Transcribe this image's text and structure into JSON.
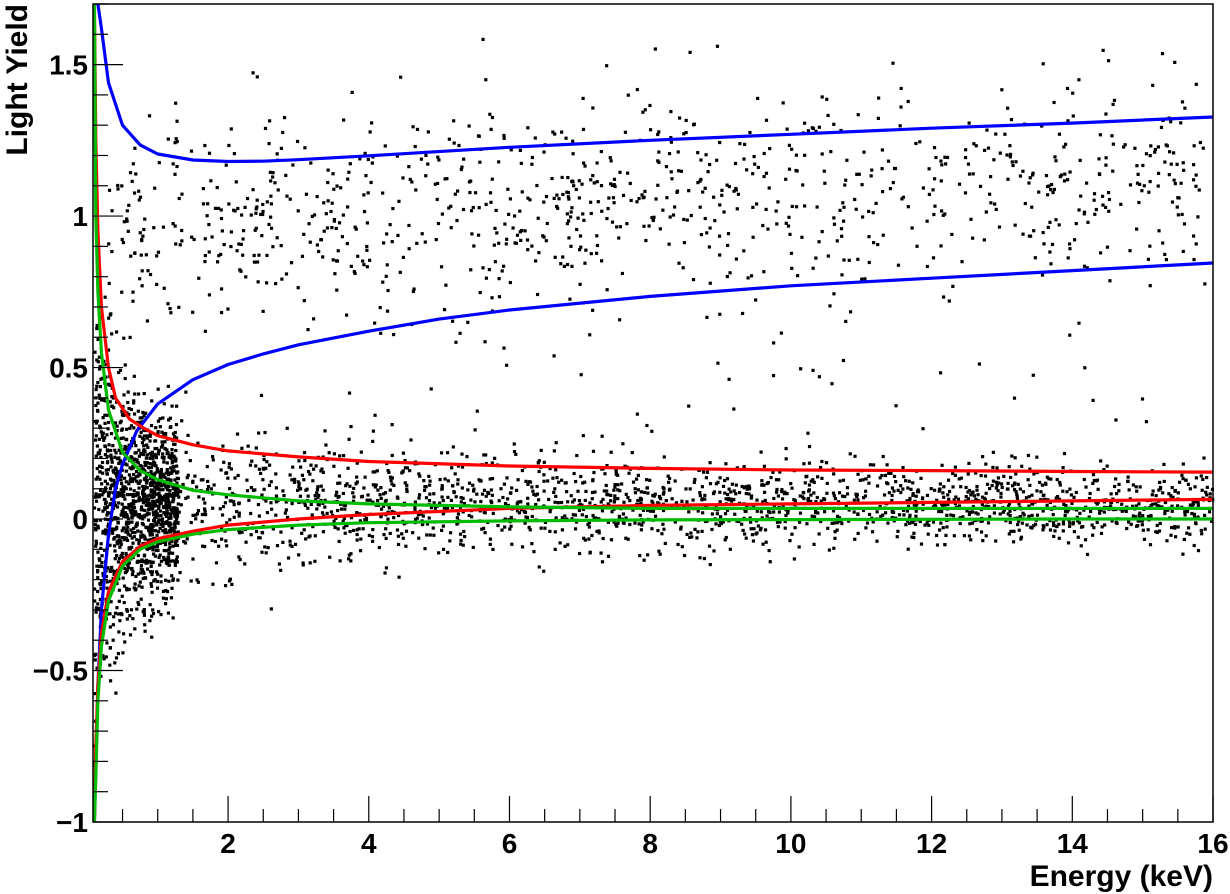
{
  "chart_data": {
    "type": "scatter",
    "title": "",
    "xlabel": "Energy (keV)",
    "ylabel": "Light Yield",
    "xlim": [
      0.08,
      16
    ],
    "ylim": [
      -1,
      1.7
    ],
    "x_ticks": [
      2,
      4,
      6,
      8,
      10,
      12,
      14,
      16
    ],
    "x_tick_labels": [
      "2",
      "4",
      "6",
      "8",
      "10",
      "12",
      "14",
      "16"
    ],
    "y_ticks": [
      -1,
      -0.5,
      0,
      0.5,
      1,
      1.5
    ],
    "y_tick_labels": [
      "−1",
      "−0.5",
      "0",
      "0.5",
      "1",
      "1.5"
    ],
    "grid": false,
    "legend": "none",
    "marker_color": "#000000",
    "curves": [
      {
        "color": "#0000ff",
        "role": "upper band",
        "x": [
          0.15,
          0.2,
          0.3,
          0.5,
          0.75,
          1.0,
          1.5,
          2.0,
          2.5,
          3,
          4,
          6,
          8,
          10,
          12,
          14,
          16
        ],
        "y": [
          1.8,
          1.62,
          1.44,
          1.3,
          1.235,
          1.205,
          1.185,
          1.18,
          1.181,
          1.186,
          1.199,
          1.227,
          1.25,
          1.27,
          1.29,
          1.307,
          1.327
        ]
      },
      {
        "color": "#0000ff",
        "role": "lower band",
        "x": [
          0.1,
          0.15,
          0.2,
          0.3,
          0.4,
          0.5,
          0.7,
          1.0,
          1.5,
          2.0,
          2.5,
          3,
          4,
          5,
          6,
          8,
          10,
          12,
          14,
          16
        ],
        "y": [
          -1.0,
          -0.55,
          -0.3,
          -0.05,
          0.1,
          0.18,
          0.29,
          0.38,
          0.46,
          0.51,
          0.545,
          0.575,
          0.62,
          0.66,
          0.69,
          0.735,
          0.77,
          0.795,
          0.82,
          0.845
        ]
      },
      {
        "color": "#ff0000",
        "role": "upper band",
        "x": [
          0.1,
          0.12,
          0.15,
          0.2,
          0.3,
          0.4,
          0.6,
          0.8,
          1.0,
          1.5,
          2.0,
          3,
          4,
          6,
          8,
          10,
          12,
          14,
          16
        ],
        "y": [
          1.7,
          1.25,
          0.95,
          0.7,
          0.5,
          0.4,
          0.33,
          0.3,
          0.275,
          0.245,
          0.225,
          0.205,
          0.19,
          0.175,
          0.167,
          0.162,
          0.16,
          0.157,
          0.155
        ]
      },
      {
        "color": "#ff0000",
        "role": "lower band",
        "x": [
          0.1,
          0.12,
          0.15,
          0.2,
          0.3,
          0.5,
          0.75,
          1.0,
          1.5,
          2.0,
          3,
          4,
          6,
          8,
          10,
          12,
          14,
          16
        ],
        "y": [
          -1.0,
          -0.75,
          -0.55,
          -0.38,
          -0.24,
          -0.14,
          -0.09,
          -0.065,
          -0.04,
          -0.02,
          0.0,
          0.015,
          0.035,
          0.045,
          0.05,
          0.055,
          0.06,
          0.065
        ]
      },
      {
        "color": "#00bb00",
        "role": "upper band",
        "x": [
          0.1,
          0.12,
          0.15,
          0.2,
          0.3,
          0.5,
          0.75,
          1.0,
          1.5,
          2.0,
          3,
          4,
          6,
          8,
          10,
          12,
          14,
          16
        ],
        "y": [
          1.7,
          1.0,
          0.75,
          0.55,
          0.36,
          0.22,
          0.16,
          0.13,
          0.095,
          0.08,
          0.06,
          0.05,
          0.04,
          0.035,
          0.035,
          0.035,
          0.035,
          0.035
        ]
      },
      {
        "color": "#00bb00",
        "role": "lower band",
        "x": [
          0.1,
          0.12,
          0.15,
          0.2,
          0.3,
          0.5,
          0.75,
          1.0,
          1.5,
          2.0,
          3,
          4,
          6,
          8,
          10,
          12,
          14,
          16
        ],
        "y": [
          -1.0,
          -0.85,
          -0.6,
          -0.42,
          -0.27,
          -0.155,
          -0.1,
          -0.075,
          -0.05,
          -0.035,
          -0.02,
          -0.012,
          -0.006,
          -0.003,
          -0.002,
          -0.001,
          0.0,
          0.0
        ]
      }
    ]
  }
}
